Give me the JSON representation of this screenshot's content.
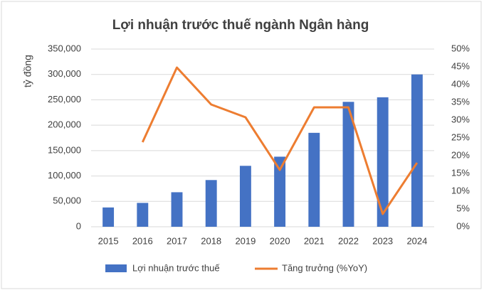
{
  "chart_data": {
    "type": "bar-line",
    "title": "Lợi nhuận trước thuế ngành Ngân hàng",
    "y_label": "tỷ đồng",
    "categories": [
      "2015",
      "2016",
      "2017",
      "2018",
      "2019",
      "2020",
      "2021",
      "2022",
      "2023",
      "2024"
    ],
    "series": [
      {
        "name": "Lợi nhuận trước thuế",
        "type": "bar",
        "color": "#4472c4",
        "values": [
          38000,
          47000,
          68000,
          92000,
          120000,
          138000,
          185000,
          246000,
          255000,
          300000
        ]
      },
      {
        "name": "Tăng trưởng (%YoY)",
        "type": "line",
        "axis": "y2",
        "color": "#ed7d31",
        "values": [
          null,
          23.8,
          44.8,
          34.4,
          30.8,
          16,
          33.6,
          33.6,
          3.6,
          18
        ]
      }
    ],
    "ylim": [
      0,
      350000
    ],
    "yticks": [
      0,
      {
        "value": 50000,
        "label": "50,000"
      },
      {
        "value": 100000,
        "label": "100,000"
      },
      {
        "value": 150000,
        "label": "150,000"
      },
      {
        "value": 200000,
        "label": "200,000"
      },
      {
        "value": 250000,
        "label": "250,000"
      },
      {
        "value": 300000,
        "label": "300,000"
      },
      {
        "value": 350000,
        "label": "350,000"
      }
    ],
    "y2lim": [
      0,
      50
    ],
    "y2ticks": [
      {
        "value": 0,
        "label": "0%"
      },
      {
        "value": 5,
        "label": "5%"
      },
      {
        "value": 10,
        "label": "10%"
      },
      {
        "value": 15,
        "label": "15%"
      },
      {
        "value": 20,
        "label": "20%"
      },
      {
        "value": 25,
        "label": "25%"
      },
      {
        "value": 30,
        "label": "30%"
      },
      {
        "value": 35,
        "label": "35%"
      },
      {
        "value": 40,
        "label": "40%"
      },
      {
        "value": 45,
        "label": "45%"
      },
      {
        "value": 50,
        "label": "50%"
      }
    ],
    "grid": true
  }
}
